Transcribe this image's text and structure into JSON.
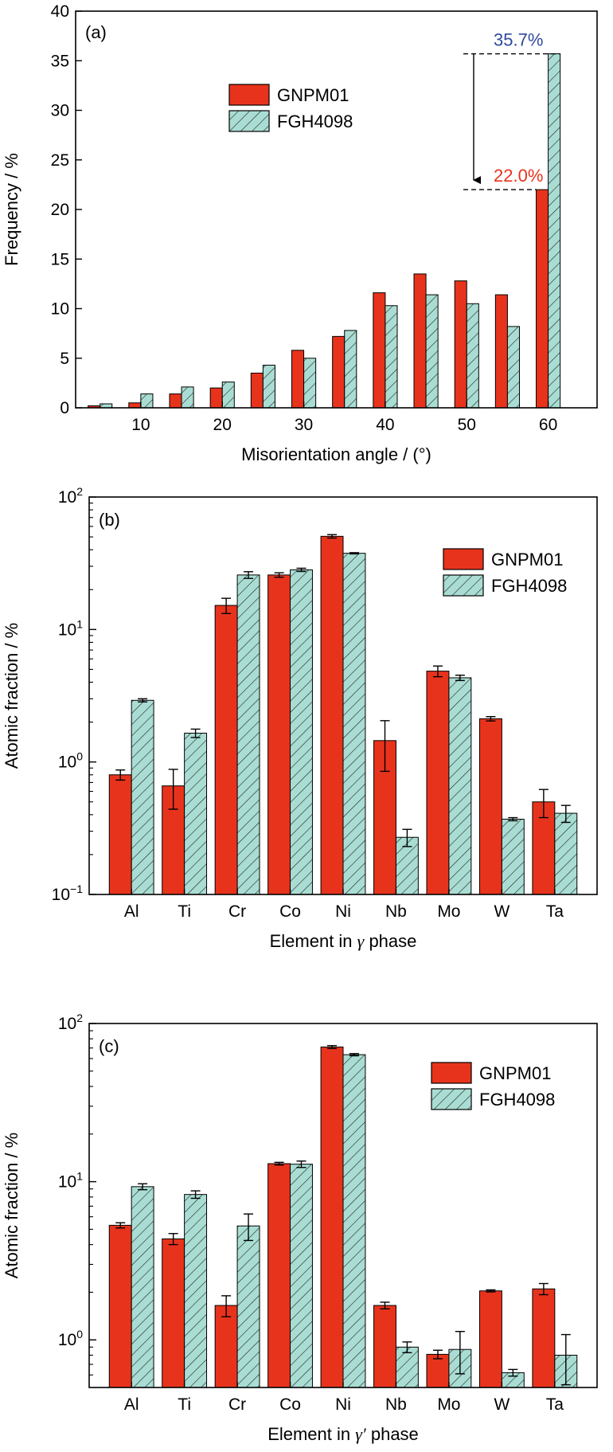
{
  "colors": {
    "series1": "#e8331c",
    "series2": "#a9ddd3",
    "hatch": "#222222",
    "axis": "#000000",
    "annotation_blue": "#3048a0",
    "annotation_red": "#e8331c"
  },
  "chart_data": [
    {
      "type": "bar",
      "panel_label": "(a)",
      "xlabel": "Misorientation angle / (°)",
      "ylabel": "Frequency / %",
      "yscale": "linear",
      "ylim": [
        0,
        40
      ],
      "yticks": [
        0,
        5,
        10,
        15,
        20,
        25,
        30,
        35,
        40
      ],
      "xlim": [
        2,
        66
      ],
      "xticks": [
        10,
        20,
        30,
        40,
        50,
        60
      ],
      "bin_centers": [
        5,
        10,
        15,
        20,
        25,
        30,
        35,
        40,
        45,
        50,
        55,
        60
      ],
      "series": [
        {
          "name": "GNPM01",
          "values": [
            0.2,
            0.5,
            1.4,
            2.0,
            3.5,
            5.8,
            7.2,
            11.6,
            13.5,
            12.8,
            11.4,
            22.0
          ]
        },
        {
          "name": "FGH4098",
          "values": [
            0.4,
            1.4,
            2.1,
            2.6,
            4.3,
            5.0,
            7.8,
            10.3,
            11.4,
            10.5,
            8.2,
            35.7
          ]
        }
      ],
      "legend_position": "upper-center",
      "annotations": [
        {
          "text": "35.7%",
          "value": 35.7,
          "color": "#3048a0"
        },
        {
          "text": "22.0%",
          "value": 22.0,
          "color": "#e8331c"
        }
      ]
    },
    {
      "type": "bar",
      "panel_label": "(b)",
      "xlabel_prefix": "Element in ",
      "xlabel_symbol": "γ",
      "xlabel_suffix": " phase",
      "ylabel": "Atomic fraction / %",
      "yscale": "log",
      "ylim": [
        0.1,
        100
      ],
      "yticks": [
        {
          "value": 0.1,
          "base": "10",
          "exp": "−1"
        },
        {
          "value": 1,
          "base": "10",
          "exp": "0"
        },
        {
          "value": 10,
          "base": "10",
          "exp": "1"
        },
        {
          "value": 100,
          "base": "10",
          "exp": "2"
        }
      ],
      "categories": [
        "Al",
        "Ti",
        "Cr",
        "Co",
        "Ni",
        "Nb",
        "Mo",
        "W",
        "Ta"
      ],
      "series": [
        {
          "name": "GNPM01",
          "values": [
            0.8,
            0.66,
            15.2,
            25.8,
            50.5,
            1.45,
            4.85,
            2.12,
            0.5
          ],
          "errors": [
            0.07,
            0.22,
            2.0,
            1.0,
            1.5,
            0.6,
            0.45,
            0.08,
            0.12
          ]
        },
        {
          "name": "FGH4098",
          "values": [
            2.92,
            1.65,
            25.8,
            28.2,
            37.6,
            0.27,
            4.32,
            0.37,
            0.41
          ],
          "errors": [
            0.08,
            0.12,
            1.5,
            0.8,
            0.4,
            0.04,
            0.2,
            0.01,
            0.06
          ]
        }
      ],
      "legend_position": "upper-right"
    },
    {
      "type": "bar",
      "panel_label": "(c)",
      "xlabel_prefix": "Element in ",
      "xlabel_symbol": "γ′",
      "xlabel_suffix": " phase",
      "ylabel": "Atomic fraction / %",
      "yscale": "log",
      "ylim": [
        0.5,
        100
      ],
      "yticks": [
        {
          "value": 1,
          "base": "10",
          "exp": "0"
        },
        {
          "value": 10,
          "base": "10",
          "exp": "1"
        },
        {
          "value": 100,
          "base": "10",
          "exp": "2"
        }
      ],
      "categories": [
        "Al",
        "Ti",
        "Cr",
        "Co",
        "Ni",
        "Nb",
        "Mo",
        "W",
        "Ta"
      ],
      "series": [
        {
          "name": "GNPM01",
          "values": [
            5.3,
            4.35,
            1.65,
            13.0,
            71.0,
            1.65,
            0.81,
            2.04,
            2.1
          ],
          "errors": [
            0.2,
            0.35,
            0.25,
            0.25,
            1.5,
            0.08,
            0.05,
            0.03,
            0.17
          ]
        },
        {
          "name": "FGH4098",
          "values": [
            9.3,
            8.3,
            5.25,
            12.9,
            63.5,
            0.9,
            0.87,
            0.62,
            0.8
          ],
          "errors": [
            0.4,
            0.45,
            1.0,
            0.6,
            1.0,
            0.07,
            0.26,
            0.03,
            0.28
          ]
        }
      ],
      "legend_position": "center-right"
    }
  ]
}
